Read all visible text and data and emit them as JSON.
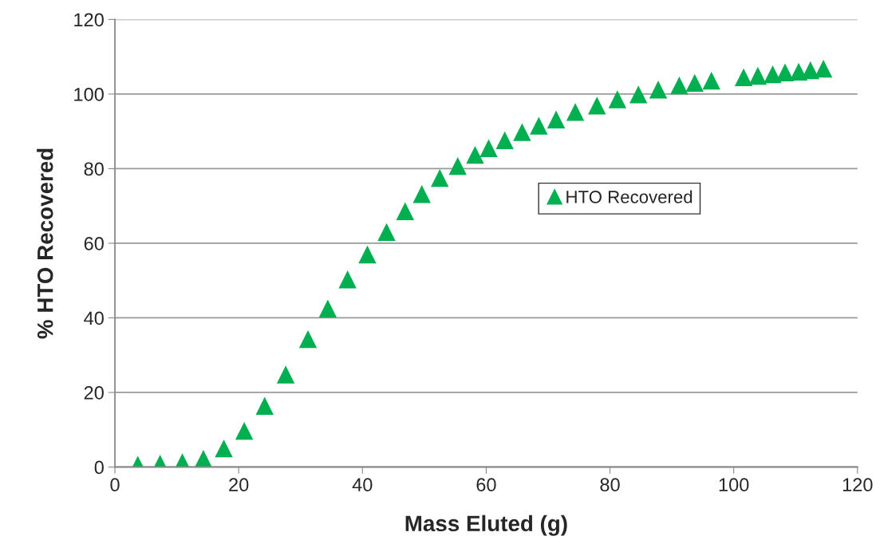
{
  "chart_data": {
    "type": "scatter",
    "xlabel": "Mass Eluted (g)",
    "ylabel": "% HTO Recovered",
    "x": [
      3.7,
      7.3,
      10.9,
      14.3,
      17.6,
      20.9,
      24.2,
      27.6,
      31.2,
      34.4,
      37.6,
      40.8,
      43.9,
      46.9,
      49.6,
      52.5,
      55.4,
      58.2,
      60.4,
      63.0,
      65.8,
      68.5,
      71.3,
      74.4,
      77.9,
      81.2,
      84.6,
      87.8,
      91.2,
      93.7,
      96.4,
      101.6,
      103.9,
      106.3,
      108.3,
      110.5,
      112.4,
      114.5
    ],
    "series": [
      {
        "name": "HTO Recovered",
        "color": "#00b050",
        "values": [
          0.6,
          0.9,
          1.3,
          2.2,
          5.0,
          9.7,
          16.4,
          24.8,
          34.3,
          42.5,
          50.3,
          57.0,
          63.0,
          68.6,
          73.2,
          77.5,
          80.7,
          83.7,
          85.5,
          87.6,
          89.8,
          91.5,
          93.2,
          95.2,
          96.9,
          98.6,
          99.9,
          101.2,
          102.3,
          103.0,
          103.6,
          104.5,
          104.9,
          105.3,
          105.8,
          106.0,
          106.4,
          106.8
        ]
      }
    ],
    "xlim": [
      0,
      120
    ],
    "xticks": [
      0,
      20,
      40,
      60,
      80,
      100,
      120
    ],
    "ylim": [
      0,
      120
    ],
    "yticks": [
      0,
      20,
      40,
      60,
      80,
      100,
      120
    ],
    "grid": "y",
    "legend": "right",
    "marker": "triangle"
  }
}
